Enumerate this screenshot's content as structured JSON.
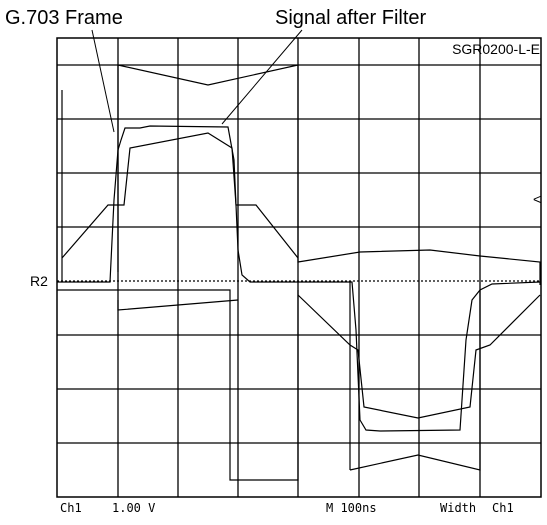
{
  "labels": {
    "frame": "G.703 Frame",
    "filter": "Signal after Filter",
    "code": "SGR0200-L-E",
    "ref": "R2"
  },
  "readout": {
    "channel": "Ch1",
    "scale": "1.00 V",
    "timebase": "M 100ns",
    "trigger": "Width",
    "trigger_source": "Ch1"
  }
}
